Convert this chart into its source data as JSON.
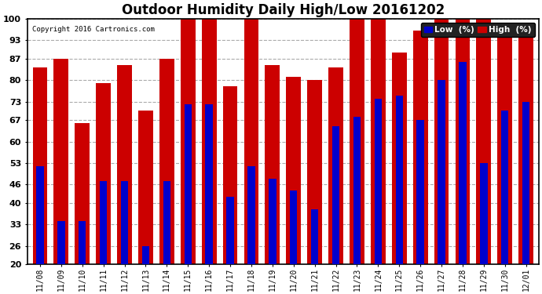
{
  "title": "Outdoor Humidity Daily High/Low 20161202",
  "copyright": "Copyright 2016 Cartronics.com",
  "labels": [
    "11/08",
    "11/09",
    "11/10",
    "11/11",
    "11/12",
    "11/13",
    "11/14",
    "11/15",
    "11/16",
    "11/17",
    "11/18",
    "11/19",
    "11/20",
    "11/21",
    "11/22",
    "11/23",
    "11/24",
    "11/25",
    "11/26",
    "11/27",
    "11/28",
    "11/29",
    "11/30",
    "12/01"
  ],
  "high": [
    84,
    87,
    66,
    79,
    85,
    70,
    87,
    100,
    100,
    78,
    100,
    85,
    81,
    80,
    84,
    100,
    100,
    89,
    96,
    100,
    100,
    100,
    97,
    97
  ],
  "low": [
    52,
    34,
    34,
    47,
    47,
    26,
    47,
    72,
    72,
    42,
    52,
    48,
    44,
    38,
    65,
    68,
    74,
    75,
    67,
    80,
    86,
    53,
    70,
    73
  ],
  "ylim_min": 20,
  "ylim_max": 100,
  "yticks": [
    20,
    26,
    33,
    40,
    46,
    53,
    60,
    67,
    73,
    80,
    87,
    93,
    100
  ],
  "high_color": "#cc0000",
  "low_color": "#0000cc",
  "bg_color": "#ffffff",
  "grid_color": "#aaaaaa",
  "title_fontsize": 12,
  "legend_low_label": "Low  (%)",
  "legend_high_label": "High  (%)"
}
